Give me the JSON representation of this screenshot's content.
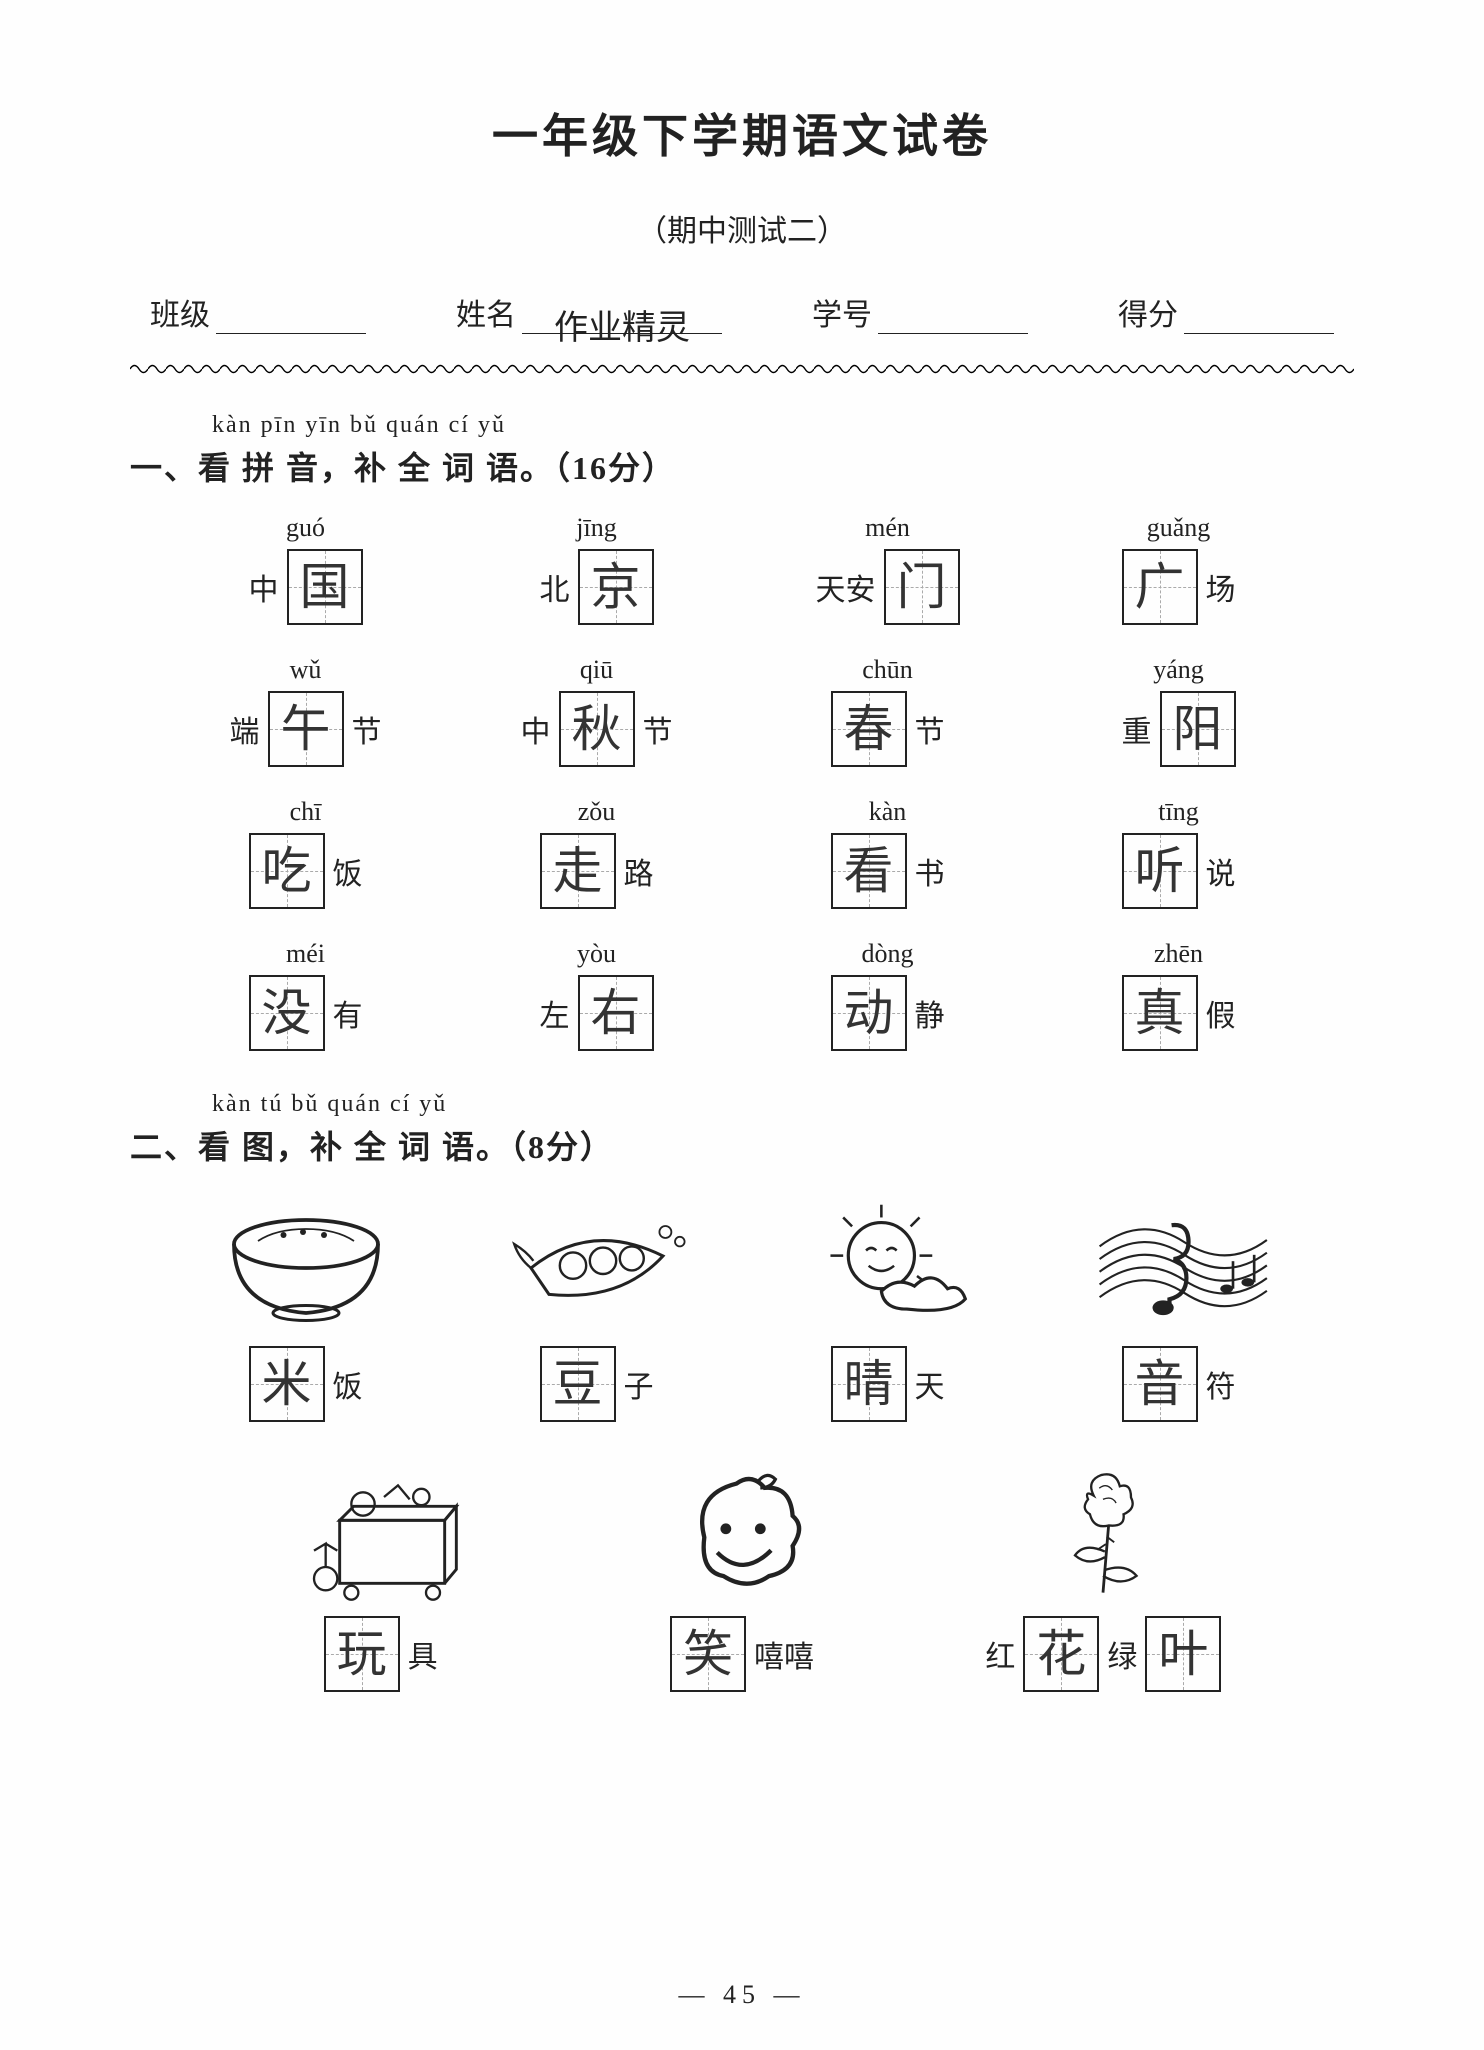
{
  "title": "一年级下学期语文试卷",
  "subtitle": "（期中测试二）",
  "info": {
    "class_label": "班级",
    "name_label": "姓名",
    "name_value": "作业精灵",
    "id_label": "学号",
    "score_label": "得分"
  },
  "section1": {
    "pinyin": "kàn pīn yīn bǔ quán cí yǔ",
    "heading": "一、看 拼 音，补 全 词 语。（16分）",
    "items": [
      {
        "pinyin": "guó",
        "pre": "中",
        "ans": "国",
        "post": ""
      },
      {
        "pinyin": "jīng",
        "pre": "北",
        "ans": "京",
        "post": ""
      },
      {
        "pinyin": "mén",
        "pre": "天安",
        "ans": "门",
        "post": ""
      },
      {
        "pinyin": "guǎng",
        "pre": "",
        "ans": "广",
        "post": "场"
      },
      {
        "pinyin": "wǔ",
        "pre": "端",
        "ans": "午",
        "post": "节"
      },
      {
        "pinyin": "qiū",
        "pre": "中",
        "ans": "秋",
        "post": "节"
      },
      {
        "pinyin": "chūn",
        "pre": "",
        "ans": "春",
        "post": "节"
      },
      {
        "pinyin": "yáng",
        "pre": "重",
        "ans": "阳",
        "post": ""
      },
      {
        "pinyin": "chī",
        "pre": "",
        "ans": "吃",
        "post": "饭"
      },
      {
        "pinyin": "zǒu",
        "pre": "",
        "ans": "走",
        "post": "路"
      },
      {
        "pinyin": "kàn",
        "pre": "",
        "ans": "看",
        "post": "书"
      },
      {
        "pinyin": "tīng",
        "pre": "",
        "ans": "听",
        "post": "说"
      },
      {
        "pinyin": "méi",
        "pre": "",
        "ans": "没",
        "post": "有"
      },
      {
        "pinyin": "yòu",
        "pre": "左",
        "ans": "右",
        "post": ""
      },
      {
        "pinyin": "dòng",
        "pre": "",
        "ans": "动",
        "post": "静"
      },
      {
        "pinyin": "zhēn",
        "pre": "",
        "ans": "真",
        "post": "假"
      }
    ]
  },
  "section2": {
    "pinyin": "kàn tú bǔ quán cí yǔ",
    "heading": "二、看 图，补 全 词 语。（8分）",
    "row1": [
      {
        "icon": "bowl",
        "pre": "",
        "ans": "米",
        "post": "饭"
      },
      {
        "icon": "peas",
        "pre": "",
        "ans": "豆",
        "post": "子"
      },
      {
        "icon": "sun",
        "pre": "",
        "ans": "晴",
        "post": "天"
      },
      {
        "icon": "music",
        "pre": "",
        "ans": "音",
        "post": "符"
      }
    ],
    "row2": [
      {
        "icon": "toybox",
        "pre": "",
        "ans": "玩",
        "post": "具"
      },
      {
        "icon": "face",
        "pre": "",
        "ans": "笑",
        "post": "嘻嘻"
      },
      {
        "icon": "rose",
        "pre": "红",
        "ans": "花",
        "mid": "绿",
        "ans2": "叶",
        "post": ""
      }
    ]
  },
  "pagenum": "— 45 —"
}
